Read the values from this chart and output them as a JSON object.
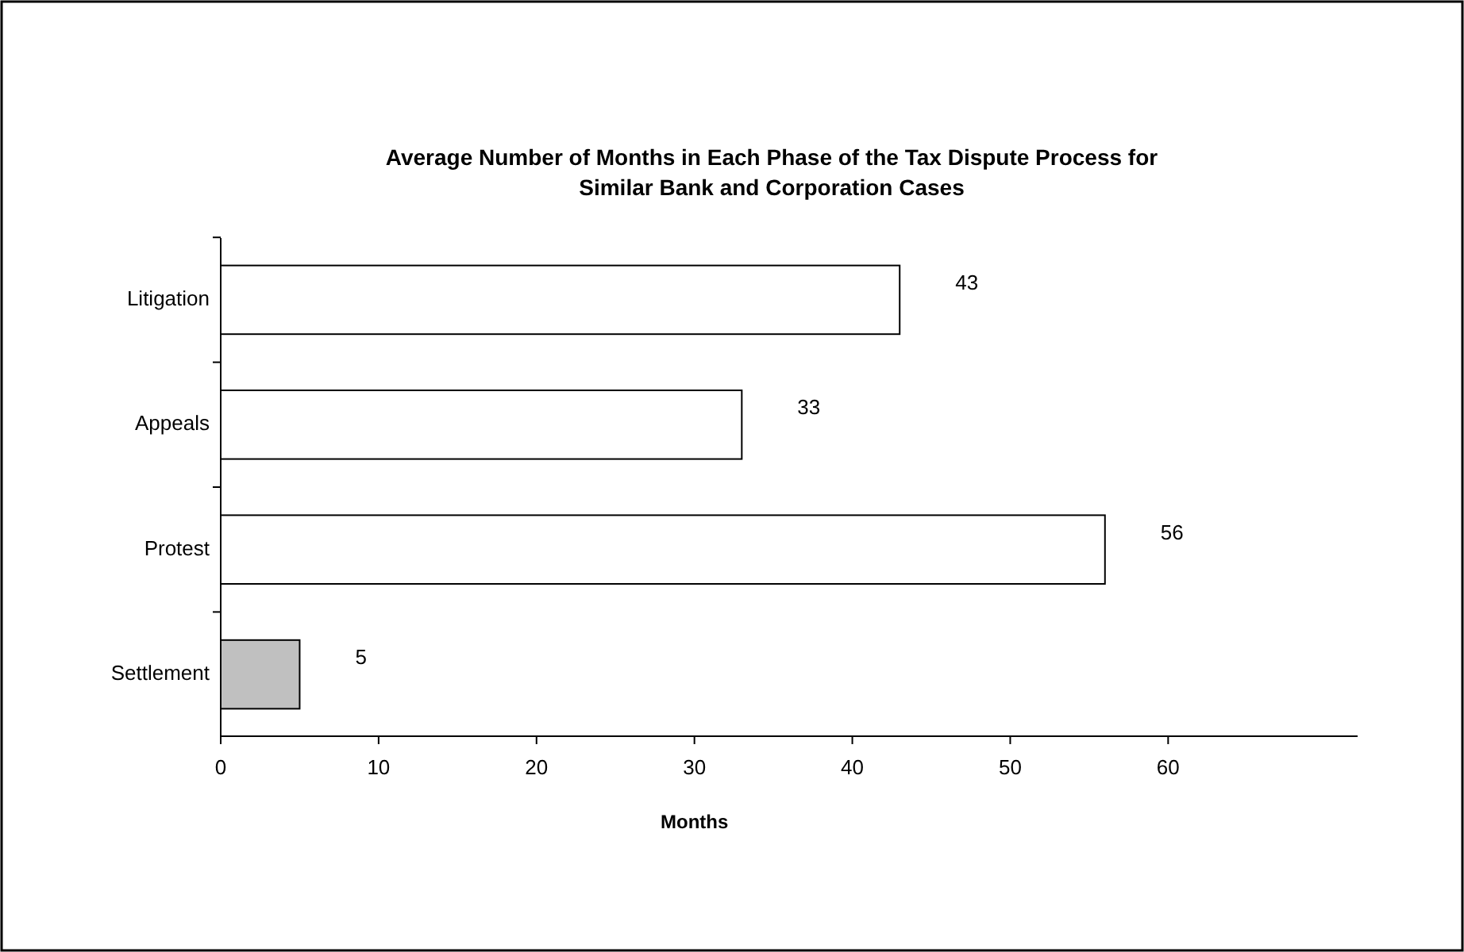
{
  "chart_data": {
    "type": "bar",
    "orientation": "horizontal",
    "title": "Average Number of Months in Each Phase of the Tax Dispute Process for Similar Bank and Corporation Cases",
    "xlabel": "Months",
    "categories": [
      "Litigation",
      "Appeals",
      "Protest",
      "Settlement"
    ],
    "values": [
      43,
      33,
      56,
      5
    ],
    "colors": [
      "#ffffff",
      "#ffffff",
      "#ffffff",
      "#c0c0c0"
    ],
    "xlim": [
      0,
      72
    ],
    "xticks": [
      0,
      10,
      20,
      30,
      40,
      50,
      60
    ],
    "data_labels": true
  }
}
